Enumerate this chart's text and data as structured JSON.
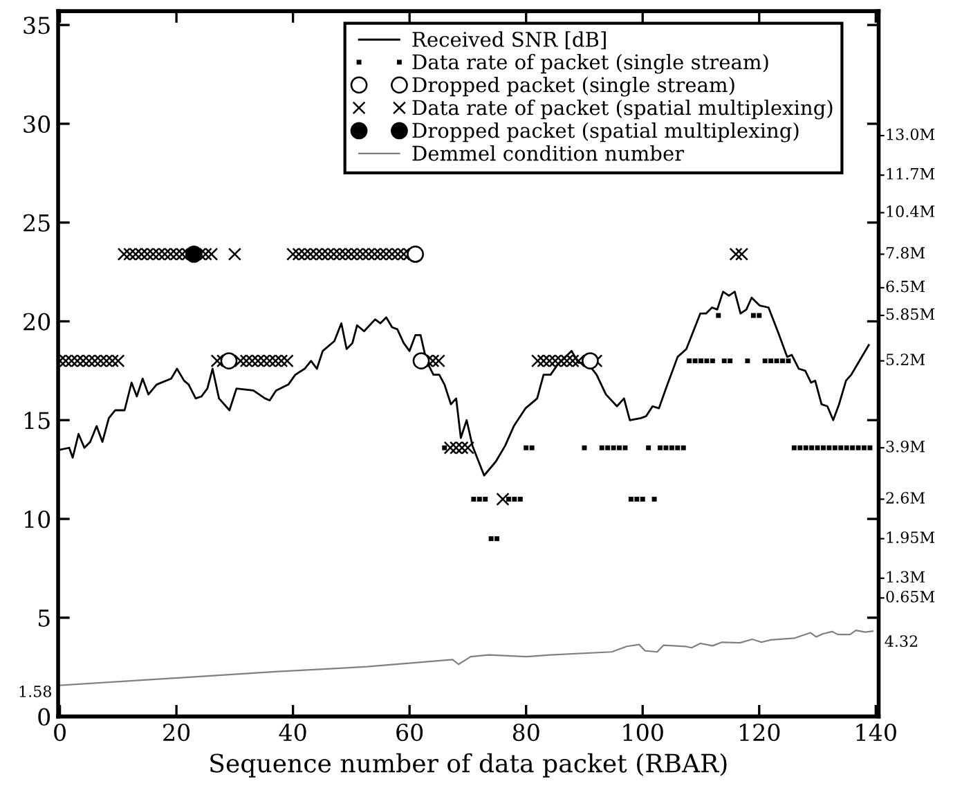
{
  "chart_data": {
    "type": "scatter",
    "xlabel": "Sequence number of data packet (RBAR)",
    "xlim": [
      -0.3,
      140.5
    ],
    "xticks": [
      0,
      20,
      40,
      60,
      80,
      100,
      120,
      140
    ],
    "ylim": [
      0,
      35.7
    ],
    "yticks": [
      0,
      5,
      10,
      15,
      20,
      25,
      30,
      35
    ],
    "annotations": [
      {
        "text": "1.58",
        "x": 0,
        "y": 1.58
      },
      {
        "text": "4.32",
        "x": 139.5,
        "y": 4.32
      }
    ],
    "ref_lines": [
      {
        "axis": "y",
        "value": 29.4,
        "label": "13.0M"
      },
      {
        "axis": "y",
        "value": 27.4,
        "label": "11.7M"
      },
      {
        "axis": "y",
        "value": 25.5,
        "label": "10.4M"
      },
      {
        "axis": "y",
        "value": 23.4,
        "label": "7.8M"
      },
      {
        "axis": "y",
        "value": 21.7,
        "label": "6.5M"
      },
      {
        "axis": "y",
        "value": 20.3,
        "label": "5.85M"
      },
      {
        "axis": "y",
        "value": 18.0,
        "label": "5.2M"
      },
      {
        "axis": "y",
        "value": 13.6,
        "label": "3.9M"
      },
      {
        "axis": "y",
        "value": 11.0,
        "label": "2.6M"
      },
      {
        "axis": "y",
        "value": 9.0,
        "label": "1.95M"
      },
      {
        "axis": "y",
        "value": 7.0,
        "label": "1.3M"
      },
      {
        "axis": "y",
        "value": 6.0,
        "label": "0.65M"
      }
    ],
    "legend": "top right",
    "grid": false,
    "series": [
      {
        "name": "Received SNR [dB]",
        "type": "line",
        "color": "#000000",
        "line_style": "solid",
        "marker": "none",
        "x": [
          0,
          1.6,
          2.2,
          3.2,
          4.2,
          5.2,
          6.3,
          7.3,
          8.4,
          9.5,
          11.1,
          12.3,
          13.2,
          14.2,
          15.2,
          16.6,
          19.1,
          20.1,
          21.3,
          22.1,
          23.3,
          24.3,
          25.3,
          26.2,
          27.3,
          29.1,
          30.3,
          33.2,
          35.2,
          36,
          37.1,
          39.2,
          40.4,
          42,
          43.1,
          44.1,
          45.1,
          47.1,
          48.3,
          49.2,
          50.2,
          51,
          52.2,
          54.1,
          55,
          56,
          57,
          57.9,
          59,
          60,
          61,
          61.9,
          62.9,
          64.1,
          65.1,
          66,
          67.1,
          68,
          68.8,
          69.8,
          70.8,
          72.8,
          74.8,
          76.4,
          77.9,
          79.9,
          81.9,
          83,
          84.2,
          85.4,
          87.8,
          89,
          90.5,
          92.1,
          93.7,
          95.6,
          96.8,
          97.8,
          99.7,
          100.6,
          101.7,
          102.8,
          104,
          106,
          107.5,
          109.9,
          110.9,
          111.9,
          112.8,
          113.8,
          114.8,
          115.8,
          116.8,
          117.8,
          118.7,
          120.1,
          121.6,
          123.3,
          124.8,
          125.6,
          126.8,
          127.9,
          128.9,
          129.6,
          130.7,
          131.7,
          132.7,
          133.7,
          134.9,
          135.8,
          136.8,
          138.8
        ],
        "values": [
          13.5,
          13.6,
          13.1,
          14.3,
          13.6,
          13.9,
          14.7,
          13.9,
          15.1,
          15.5,
          15.5,
          16.9,
          16.2,
          17.1,
          16.3,
          16.8,
          17.1,
          17.6,
          17,
          16.8,
          16.1,
          16.2,
          16.6,
          17.6,
          16.1,
          15.5,
          16.6,
          16.5,
          16.1,
          16,
          16.5,
          16.8,
          17.3,
          17.6,
          18,
          17.6,
          18.5,
          19,
          19.9,
          18.6,
          18.9,
          19.8,
          19.5,
          20.1,
          19.9,
          20.2,
          19.7,
          19.6,
          18.9,
          18.5,
          19.3,
          19.3,
          18,
          17.3,
          17.3,
          16.8,
          15.8,
          16.1,
          14.1,
          15,
          13.7,
          12.2,
          12.9,
          13.7,
          14.7,
          15.6,
          16.1,
          17.3,
          17.3,
          17.8,
          18.5,
          17.9,
          17.9,
          17.3,
          16.3,
          15.7,
          16.1,
          15,
          15.1,
          15.2,
          15.7,
          15.6,
          16.6,
          18.2,
          18.6,
          20.4,
          20.4,
          20.7,
          20.6,
          21.5,
          21.3,
          21.5,
          20.4,
          20.6,
          21.2,
          20.8,
          20.7,
          19.4,
          18.2,
          18.3,
          17.6,
          17.5,
          16.9,
          17,
          15.8,
          15.7,
          15,
          15.8,
          17,
          17.3,
          17.8,
          18.8
        ]
      },
      {
        "name": "Data rate of packet (single stream)",
        "color": "#000000",
        "marker": "square",
        "x": [
          66,
          80,
          81,
          90,
          93,
          94,
          95,
          96,
          97,
          101,
          103,
          104,
          105,
          106,
          107,
          126,
          127,
          128,
          129,
          130,
          131,
          132,
          133,
          134,
          135,
          136,
          137,
          138,
          139,
          71,
          72,
          73,
          77,
          78,
          79,
          98,
          99,
          100,
          102,
          74,
          75,
          108,
          109,
          110,
          111,
          112,
          114,
          115,
          118,
          121,
          122,
          123,
          124,
          125,
          113,
          119,
          120
        ],
        "values": [
          13.6,
          13.6,
          13.6,
          13.6,
          13.6,
          13.6,
          13.6,
          13.6,
          13.6,
          13.6,
          13.6,
          13.6,
          13.6,
          13.6,
          13.6,
          13.6,
          13.6,
          13.6,
          13.6,
          13.6,
          13.6,
          13.6,
          13.6,
          13.6,
          13.6,
          13.6,
          13.6,
          13.6,
          13.6,
          11.0,
          11.0,
          11.0,
          11.0,
          11.0,
          11.0,
          11.0,
          11.0,
          11.0,
          11.0,
          9.0,
          9.0,
          18.0,
          18.0,
          18.0,
          18.0,
          18.0,
          18.0,
          18.0,
          18.0,
          18.0,
          18.0,
          18.0,
          18.0,
          18.0,
          20.3,
          20.3,
          20.3
        ]
      },
      {
        "name": "Dropped packet (single stream)",
        "color": "#ffffff",
        "marker": "circle",
        "x": [
          29,
          61,
          62,
          91
        ],
        "values": [
          18.0,
          23.4,
          18.0,
          18.0
        ]
      },
      {
        "name": "Data rate of packet (spatial multiplexing)",
        "color": "#000000",
        "marker": "cross",
        "x": [
          0,
          1,
          2,
          3,
          4,
          5,
          6,
          7,
          8,
          9,
          10,
          27,
          28,
          31,
          32,
          33,
          34,
          35,
          36,
          37,
          38,
          39,
          63,
          64,
          65,
          82,
          83,
          84,
          85,
          86,
          87,
          88,
          89,
          92,
          11,
          12,
          13,
          14,
          15,
          16,
          17,
          18,
          19,
          20,
          21,
          22,
          24,
          25,
          26,
          30,
          40,
          41,
          42,
          43,
          44,
          45,
          46,
          47,
          48,
          49,
          50,
          51,
          52,
          53,
          54,
          55,
          56,
          57,
          58,
          59,
          60,
          116,
          117,
          67,
          68,
          69,
          70,
          76
        ],
        "values": [
          18.0,
          18.0,
          18.0,
          18.0,
          18.0,
          18.0,
          18.0,
          18.0,
          18.0,
          18.0,
          18.0,
          18.0,
          18.0,
          18.0,
          18.0,
          18.0,
          18.0,
          18.0,
          18.0,
          18.0,
          18.0,
          18.0,
          18.0,
          18.0,
          18.0,
          18.0,
          18.0,
          18.0,
          18.0,
          18.0,
          18.0,
          18.0,
          18.0,
          18.0,
          23.4,
          23.4,
          23.4,
          23.4,
          23.4,
          23.4,
          23.4,
          23.4,
          23.4,
          23.4,
          23.4,
          23.4,
          23.4,
          23.4,
          23.4,
          23.4,
          23.4,
          23.4,
          23.4,
          23.4,
          23.4,
          23.4,
          23.4,
          23.4,
          23.4,
          23.4,
          23.4,
          23.4,
          23.4,
          23.4,
          23.4,
          23.4,
          23.4,
          23.4,
          23.4,
          23.4,
          23.4,
          23.4,
          23.4,
          13.6,
          13.6,
          13.6,
          13.6,
          11.0
        ]
      },
      {
        "name": "Dropped packet (spatial multiplexing)",
        "color": "#000000",
        "marker": "circle",
        "x": [
          23
        ],
        "values": [
          23.4
        ]
      },
      {
        "name": "Demmel condition number",
        "type": "line",
        "color": "#808080",
        "line_style": "solid",
        "marker": "none",
        "x": [
          0,
          21.2,
          36.9,
          52.7,
          67.4,
          68.4,
          70.5,
          73.6,
          80,
          84.2,
          94.7,
          97.3,
          99.4,
          100.4,
          102.5,
          103.6,
          107.3,
          108.4,
          109.9,
          112,
          113.6,
          116.7,
          118.8,
          120.4,
          122,
          126.1,
          128.8,
          129.8,
          130.9,
          132.5,
          133.5,
          135.6,
          136.6,
          138.2,
          139.5
        ],
        "values": [
          1.58,
          1.97,
          2.27,
          2.52,
          2.88,
          2.64,
          3.03,
          3.12,
          3.03,
          3.12,
          3.27,
          3.55,
          3.64,
          3.33,
          3.27,
          3.61,
          3.55,
          3.48,
          3.7,
          3.58,
          3.76,
          3.73,
          3.91,
          3.76,
          3.88,
          3.97,
          4.24,
          4.03,
          4.18,
          4.3,
          4.15,
          4.15,
          4.36,
          4.27,
          4.32
        ]
      }
    ]
  }
}
